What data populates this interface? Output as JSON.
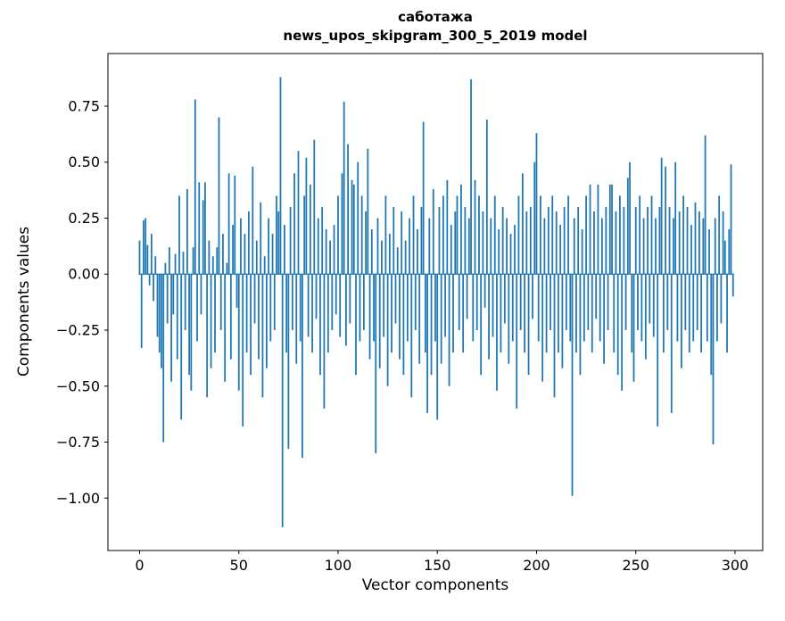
{
  "figure": {
    "title_line1": "саботажа",
    "title_line2": "news_upos_skipgram_300_5_2019 model",
    "xlabel": "Vector components",
    "ylabel": "Components values"
  },
  "chart_data": {
    "type": "bar",
    "title": "саботажа\nnews_upos_skipgram_300_5_2019 model",
    "xlabel": "Vector components",
    "ylabel": "Components values",
    "legend": null,
    "grid": false,
    "bar_color": "#1f77b4",
    "x_ticks": [
      0,
      50,
      100,
      150,
      200,
      250,
      300
    ],
    "y_ticks": [
      -1.0,
      -0.75,
      -0.5,
      -0.25,
      0.0,
      0.25,
      0.5,
      0.75
    ],
    "xlim": [
      -15.95,
      313.95
    ],
    "ylim": [
      -1.234,
      0.985
    ],
    "n_components": 300,
    "values": [
      0.15,
      -0.33,
      0.24,
      0.25,
      0.13,
      -0.05,
      0.18,
      -0.12,
      0.08,
      -0.28,
      -0.35,
      -0.42,
      -0.75,
      0.05,
      -0.22,
      0.12,
      -0.48,
      -0.18,
      0.09,
      -0.38,
      0.35,
      -0.65,
      0.1,
      -0.25,
      0.38,
      -0.45,
      -0.52,
      0.12,
      0.78,
      -0.3,
      0.41,
      -0.18,
      0.33,
      0.41,
      -0.55,
      0.15,
      -0.42,
      0.08,
      -0.35,
      0.12,
      0.7,
      -0.25,
      0.18,
      -0.48,
      0.05,
      0.45,
      -0.38,
      0.22,
      0.44,
      -0.15,
      -0.52,
      0.25,
      -0.68,
      0.18,
      -0.35,
      0.28,
      -0.45,
      0.48,
      -0.22,
      0.15,
      -0.38,
      0.32,
      -0.55,
      0.08,
      -0.42,
      0.25,
      -0.3,
      0.18,
      -0.25,
      0.35,
      0.28,
      0.88,
      -1.13,
      0.22,
      -0.35,
      -0.78,
      0.3,
      -0.25,
      0.45,
      -0.4,
      0.55,
      -0.3,
      -0.82,
      0.35,
      0.52,
      -0.28,
      0.4,
      -0.35,
      0.6,
      -0.2,
      0.25,
      -0.45,
      0.3,
      -0.6,
      0.2,
      -0.35,
      0.15,
      -0.25,
      0.22,
      -0.18,
      0.35,
      -0.28,
      0.45,
      0.77,
      -0.32,
      0.58,
      -0.22,
      0.42,
      0.4,
      -0.45,
      0.5,
      -0.3,
      0.35,
      -0.25,
      0.28,
      0.56,
      -0.38,
      0.2,
      -0.3,
      -0.8,
      0.25,
      -0.42,
      0.15,
      -0.28,
      0.35,
      -0.5,
      0.18,
      -0.35,
      0.3,
      -0.22,
      0.12,
      -0.38,
      0.28,
      -0.45,
      0.15,
      -0.3,
      0.25,
      -0.55,
      0.35,
      -0.25,
      0.2,
      -0.4,
      0.3,
      0.68,
      -0.35,
      -0.62,
      0.25,
      -0.45,
      0.38,
      -0.3,
      -0.65,
      0.3,
      -0.4,
      0.35,
      -0.28,
      0.42,
      -0.5,
      0.22,
      -0.35,
      0.28,
      0.35,
      -0.25,
      0.4,
      -0.35,
      0.3,
      -0.2,
      0.25,
      0.87,
      -0.3,
      0.42,
      -0.25,
      0.35,
      -0.45,
      0.28,
      -0.15,
      0.69,
      -0.38,
      0.25,
      -0.28,
      0.35,
      -0.52,
      0.2,
      -0.35,
      0.3,
      -0.22,
      0.25,
      -0.4,
      0.18,
      -0.3,
      0.22,
      -0.6,
      0.35,
      -0.25,
      0.45,
      -0.35,
      0.28,
      -0.45,
      0.3,
      -0.2,
      0.5,
      0.63,
      -0.3,
      0.35,
      -0.48,
      0.25,
      -0.35,
      0.3,
      -0.25,
      0.35,
      -0.55,
      0.28,
      -0.35,
      0.22,
      -0.42,
      0.3,
      -0.25,
      0.35,
      -0.3,
      -0.99,
      0.25,
      -0.35,
      0.3,
      -0.45,
      0.2,
      -0.3,
      0.35,
      -0.25,
      0.4,
      -0.35,
      0.28,
      -0.2,
      0.4,
      -0.3,
      0.25,
      -0.4,
      0.3,
      -0.25,
      0.4,
      0.4,
      -0.35,
      0.28,
      -0.45,
      0.35,
      -0.52,
      0.3,
      -0.25,
      0.43,
      0.5,
      -0.35,
      -0.48,
      0.3,
      -0.25,
      0.35,
      -0.3,
      0.25,
      -0.38,
      0.3,
      -0.22,
      0.35,
      -0.28,
      0.25,
      -0.68,
      0.3,
      0.52,
      -0.35,
      0.48,
      -0.25,
      0.3,
      -0.62,
      0.25,
      0.5,
      -0.3,
      0.28,
      -0.42,
      0.35,
      -0.25,
      0.3,
      -0.35,
      0.22,
      -0.3,
      0.32,
      -0.25,
      0.28,
      -0.35,
      0.25,
      0.62,
      -0.3,
      0.2,
      -0.45,
      -0.76,
      0.25,
      -0.3,
      0.35,
      -0.22,
      0.28,
      0.15,
      -0.35,
      0.2,
      0.49,
      -0.1
    ]
  }
}
